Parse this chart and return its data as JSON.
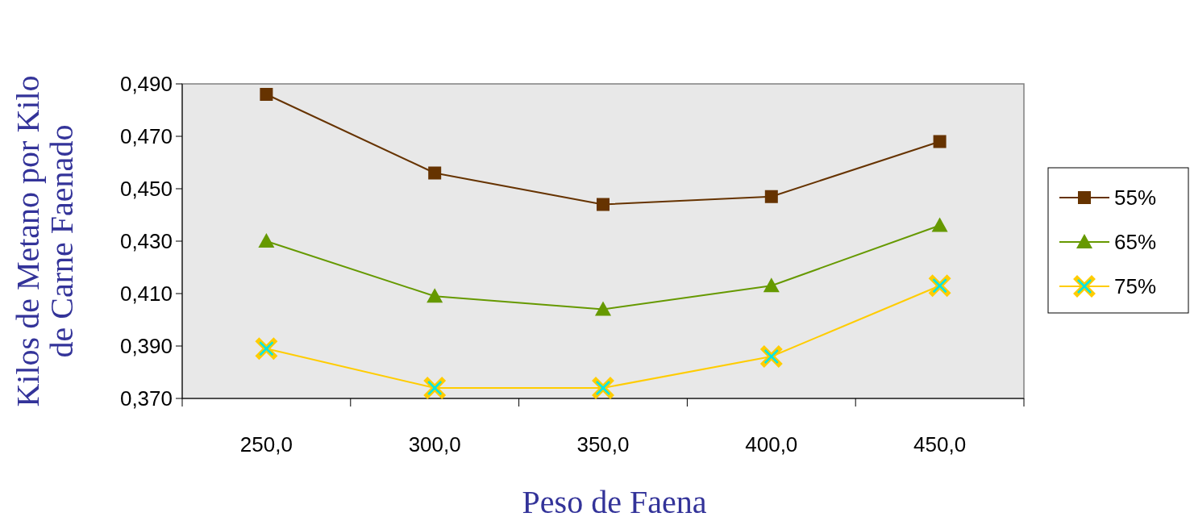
{
  "chart_data": {
    "type": "line",
    "xlabel": "Peso de Faena",
    "ylabel": "Kilos de Metano por Kilo de Carne Faenado",
    "categories": [
      "250,0",
      "300,0",
      "350,0",
      "400,0",
      "450,0"
    ],
    "ylim": [
      0.37,
      0.49
    ],
    "yticks": [
      {
        "value": 0.37,
        "label": "0,370"
      },
      {
        "value": 0.39,
        "label": "0,390"
      },
      {
        "value": 0.41,
        "label": "0,410"
      },
      {
        "value": 0.43,
        "label": "0,430"
      },
      {
        "value": 0.45,
        "label": "0,450"
      },
      {
        "value": 0.47,
        "label": "0,470"
      },
      {
        "value": 0.49,
        "label": "0,490"
      }
    ],
    "grid": false,
    "legend": "right",
    "series": [
      {
        "name": "55%",
        "color": "#663300",
        "marker": "square",
        "values": [
          0.486,
          0.456,
          0.444,
          0.447,
          0.468
        ]
      },
      {
        "name": "65%",
        "color": "#669900",
        "marker": "triangle",
        "values": [
          0.43,
          0.409,
          0.404,
          0.413,
          0.436
        ]
      },
      {
        "name": "75%",
        "color": "#ffcc00",
        "marker": "cross",
        "values": [
          0.389,
          0.374,
          0.374,
          0.386,
          0.413
        ]
      }
    ]
  }
}
